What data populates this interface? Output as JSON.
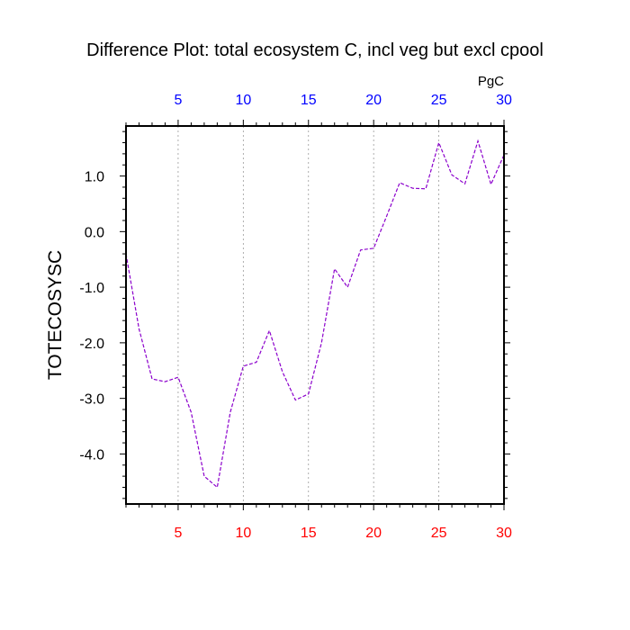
{
  "chart_data": {
    "type": "line",
    "title": "Difference Plot: total ecosystem C, incl veg but excl cpool",
    "units_label": "PgC",
    "xlabel": "",
    "ylabel": "TOTECOSYSC",
    "xlim": [
      1,
      30
    ],
    "ylim": [
      -4.9,
      1.9
    ],
    "x_ticks": [
      5,
      10,
      15,
      20,
      25,
      30
    ],
    "x_tick_labels": [
      "5",
      "10",
      "15",
      "20",
      "25",
      "30"
    ],
    "y_ticks": [
      1.0,
      0.0,
      -1.0,
      -2.0,
      -3.0,
      -4.0
    ],
    "y_tick_labels": [
      "1.0",
      "0.0",
      "-1.0",
      "-2.0",
      "-3.0",
      "-4.0"
    ],
    "top_axis_color": "#0000ff",
    "bottom_axis_color": "#ff0000",
    "grid": "vertical dashed at major x ticks",
    "series": [
      {
        "color": "#8b00cc",
        "line_style": "dashed",
        "x": [
          1,
          2,
          3,
          4,
          5,
          6,
          7,
          8,
          9,
          10,
          11,
          12,
          13,
          14,
          15,
          16,
          17,
          18,
          19,
          20,
          21,
          22,
          23,
          24,
          25,
          26,
          27,
          28,
          29,
          30
        ],
        "values": [
          -0.4,
          -1.75,
          -2.65,
          -2.7,
          -2.62,
          -3.25,
          -4.4,
          -4.6,
          -3.25,
          -2.42,
          -2.35,
          -1.78,
          -2.52,
          -3.03,
          -2.92,
          -2.0,
          -0.67,
          -1.0,
          -0.33,
          -0.3,
          0.28,
          0.88,
          0.78,
          0.77,
          1.6,
          1.02,
          0.86,
          1.63,
          0.85,
          1.38
        ]
      }
    ]
  }
}
